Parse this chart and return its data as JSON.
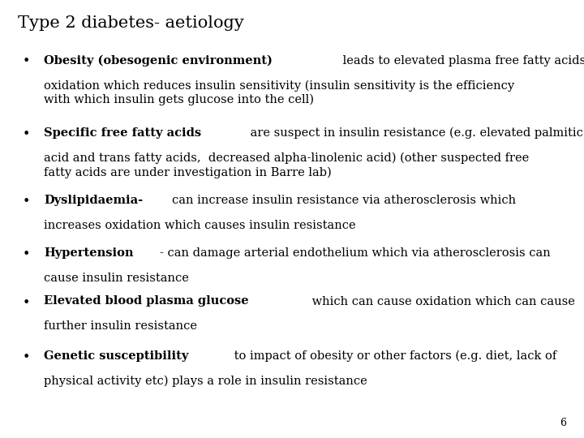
{
  "title": "Type 2 diabetes- aetiology",
  "background_color": "#ffffff",
  "title_color": "#000000",
  "title_fontsize": 15,
  "slide_number": "6",
  "font_family": "DejaVu Serif",
  "body_fontsize": 10.5,
  "text_color": "#000000",
  "bullets": [
    {
      "bold": "Obesity (obesogenic environment)",
      "line1_normal": " leads to elevated plasma free fatty acids and",
      "cont": "oxidation which reduces insulin sensitivity (insulin sensitivity is the efficiency\nwith which insulin gets glucose into the cell)"
    },
    {
      "bold": "Specific free fatty acids",
      "line1_normal": " are suspect in insulin resistance (e.g. elevated palmitic",
      "cont": "acid and trans fatty acids,  decreased alpha-linolenic acid) (other suspected free\nfatty acids are under investigation in Barre lab)"
    },
    {
      "bold": "Dyslipidaemia-",
      "line1_normal": "can increase insulin resistance via atherosclerosis which",
      "cont": "increases oxidation which causes insulin resistance"
    },
    {
      "bold": "Hypertension",
      "line1_normal": "- can damage arterial endothelium which via atherosclerosis can",
      "cont": "cause insulin resistance"
    },
    {
      "bold": "Elevated blood plasma glucose",
      "line1_normal": " which can cause oxidation which can cause",
      "cont": "further insulin resistance"
    },
    {
      "bold": "Genetic susceptibility",
      "line1_normal": " to impact of obesity or other factors (e.g. diet, lack of",
      "cont": "physical activity etc) plays a role in insulin resistance"
    }
  ]
}
